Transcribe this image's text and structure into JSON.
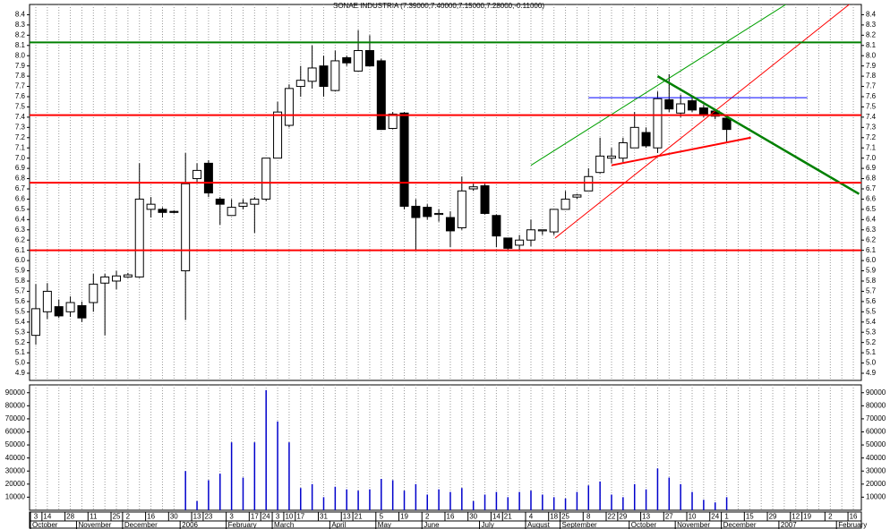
{
  "chart_data": [
    {
      "type": "candlestick",
      "title": "SONAE INDUSTRIA (7.39000,7.40000,7.15000,7.28000,-0.11000)",
      "categories": [
        "3",
        "14",
        null,
        "28",
        null,
        "11",
        null,
        "25",
        "2",
        null,
        "16",
        null,
        "30",
        null,
        "13",
        "23",
        null,
        "3",
        null,
        "17",
        "24",
        "3",
        "10",
        "17",
        null,
        "31",
        null,
        "13",
        "21",
        null,
        "5",
        null,
        "19",
        null,
        "2",
        null,
        "16",
        null,
        "30",
        null,
        "14",
        "21",
        null,
        "4",
        null,
        "18",
        "25",
        null,
        "8",
        null,
        "22",
        "29",
        null,
        "13",
        null,
        "27",
        null,
        "10",
        null,
        "24",
        "1",
        null,
        "15",
        null,
        "29",
        null,
        "12",
        "19",
        null,
        "2",
        null,
        "16"
      ],
      "months": [
        "October",
        null,
        null,
        null,
        "November",
        null,
        null,
        null,
        "December",
        null,
        null,
        null,
        null,
        "2006",
        null,
        null,
        null,
        "February",
        null,
        null,
        null,
        "March",
        null,
        null,
        null,
        null,
        "April",
        null,
        null,
        null,
        "May",
        null,
        null,
        null,
        "June",
        null,
        null,
        null,
        null,
        "July",
        null,
        null,
        null,
        "August",
        null,
        null,
        "September",
        null,
        null,
        null,
        null,
        null,
        "October",
        null,
        null,
        null,
        "November",
        null,
        null,
        null,
        "December",
        null,
        null,
        null,
        null,
        "2007",
        null,
        null,
        null,
        null,
        "February",
        null
      ],
      "open": [
        5.27,
        5.5,
        5.55,
        5.5,
        5.56,
        5.59,
        5.78,
        5.8,
        5.84,
        5.84,
        6.5,
        6.5,
        6.48,
        5.9,
        6.8,
        6.95,
        6.6,
        6.44,
        6.53,
        6.55,
        6.6,
        7.0,
        7.32,
        7.7,
        7.75,
        7.9,
        7.66,
        7.98,
        7.85,
        8.05,
        7.95,
        7.29,
        7.44,
        6.53,
        6.52,
        6.45,
        6.42,
        6.32,
        6.7,
        6.73,
        6.44,
        6.22,
        6.15,
        6.2,
        6.29,
        6.28,
        6.5,
        6.62,
        6.68,
        6.86,
        7.0,
        7.0,
        7.1,
        7.25,
        7.1,
        7.57,
        7.44,
        7.56,
        7.49,
        7.46,
        7.39,
        null,
        null,
        null,
        null,
        null,
        null,
        null,
        null,
        null,
        null,
        null
      ],
      "high": [
        5.77,
        5.78,
        5.62,
        5.65,
        5.6,
        5.87,
        5.87,
        5.9,
        5.88,
        6.95,
        6.62,
        6.52,
        6.49,
        7.05,
        6.95,
        6.98,
        6.62,
        6.6,
        6.6,
        6.62,
        7.0,
        7.55,
        7.72,
        7.9,
        8.1,
        8.0,
        8.05,
        8.0,
        8.25,
        8.2,
        7.97,
        7.45,
        7.45,
        6.6,
        6.55,
        6.5,
        6.48,
        6.82,
        6.75,
        6.75,
        6.45,
        6.22,
        6.25,
        6.4,
        6.3,
        6.5,
        6.68,
        6.65,
        6.9,
        7.2,
        7.1,
        7.2,
        7.45,
        7.3,
        7.65,
        7.82,
        7.62,
        7.6,
        7.52,
        7.48,
        7.4,
        null,
        null,
        null,
        null,
        null,
        null,
        null,
        null,
        null,
        null,
        null
      ],
      "low": [
        5.18,
        5.43,
        5.44,
        5.45,
        5.4,
        5.5,
        5.27,
        5.72,
        5.83,
        5.83,
        6.42,
        6.42,
        6.46,
        5.42,
        6.75,
        6.62,
        6.35,
        6.44,
        6.5,
        6.27,
        6.58,
        7.0,
        7.3,
        7.6,
        7.68,
        7.6,
        7.65,
        7.9,
        7.85,
        7.9,
        7.28,
        7.28,
        6.5,
        6.1,
        6.4,
        6.38,
        6.13,
        6.3,
        6.68,
        6.45,
        6.13,
        6.1,
        6.1,
        6.14,
        6.25,
        6.25,
        6.5,
        6.6,
        6.68,
        6.85,
        6.95,
        6.96,
        7.1,
        7.1,
        7.05,
        7.45,
        7.4,
        7.45,
        7.4,
        7.38,
        7.15,
        null,
        null,
        null,
        null,
        null,
        null,
        null,
        null,
        null,
        null,
        null
      ],
      "close": [
        5.53,
        5.7,
        5.46,
        5.59,
        5.44,
        5.77,
        5.84,
        5.85,
        5.86,
        6.6,
        6.55,
        6.47,
        6.47,
        6.75,
        6.88,
        6.66,
        6.55,
        6.52,
        6.56,
        6.6,
        7.0,
        7.45,
        7.68,
        7.76,
        7.88,
        7.7,
        7.95,
        7.93,
        8.05,
        7.9,
        7.28,
        7.43,
        6.53,
        6.42,
        6.43,
        6.46,
        6.29,
        6.68,
        6.72,
        6.46,
        6.24,
        6.12,
        6.2,
        6.3,
        6.3,
        6.5,
        6.6,
        6.64,
        6.82,
        7.02,
        7.02,
        7.15,
        7.3,
        7.12,
        7.58,
        7.48,
        7.53,
        7.47,
        7.43,
        7.41,
        7.28,
        null,
        null,
        null,
        null,
        null,
        null,
        null,
        null,
        null,
        null,
        null
      ],
      "up_color": "#ffffff",
      "down_color": "#000000",
      "ylim": [
        4.83,
        8.5
      ],
      "yticks": [
        4.9,
        {
          "value": 5,
          "label": "5.0"
        },
        5.1,
        5.2,
        5.3,
        5.4,
        5.5,
        5.6,
        5.7,
        5.8,
        5.9,
        {
          "value": 6,
          "label": "6.0"
        },
        6.1,
        6.2,
        6.3,
        6.4,
        6.5,
        6.6,
        6.7,
        6.8,
        6.9,
        {
          "value": 7,
          "label": "7.0"
        },
        7.1,
        7.2,
        7.3,
        7.4,
        7.5,
        7.6,
        7.7,
        7.8,
        7.9,
        {
          "value": 8,
          "label": "8.0"
        },
        8.1,
        8.2,
        8.3,
        8.4
      ],
      "hlines": [
        {
          "value": 8.13,
          "color": "#008000"
        },
        {
          "value": 7.42,
          "color": "#ff0000"
        },
        {
          "value": 6.76,
          "color": "#ff0000"
        },
        {
          "value": 6.1,
          "color": "#ff0000"
        }
      ],
      "trendlines": [
        {
          "color": "#00a000",
          "width": 1,
          "x": [
            43,
            65.7
          ],
          "y": [
            6.93,
            8.54
          ]
        },
        {
          "color": "#ff0000",
          "width": 1,
          "x": [
            45.1,
            71.2
          ],
          "y": [
            6.22,
            8.55
          ]
        },
        {
          "color": "#0000ff",
          "width": 1,
          "x": [
            48,
            67
          ],
          "y": [
            7.59,
            7.59
          ]
        },
        {
          "color": "#ff0000",
          "width": 2,
          "x": [
            50,
            62.1
          ],
          "y": [
            6.93,
            7.2
          ]
        },
        {
          "color": "#008000",
          "width": 2.5,
          "x": [
            54,
            71.5
          ],
          "y": [
            7.8,
            6.65
          ]
        }
      ]
    },
    {
      "type": "bar",
      "color": "#0000cc",
      "values": [
        0,
        0,
        0,
        0,
        0,
        0,
        0,
        0,
        0,
        0,
        0,
        0,
        0,
        30000,
        7000,
        23000,
        28000,
        52000,
        25000,
        52000,
        92000,
        68000,
        52000,
        17000,
        20000,
        10000,
        18000,
        16000,
        15000,
        16000,
        24000,
        23000,
        15000,
        20000,
        12000,
        16000,
        14000,
        17000,
        7000,
        12000,
        14000,
        10000,
        14000,
        15000,
        12000,
        10000,
        9000,
        14000,
        19000,
        22000,
        12000,
        10000,
        20000,
        16000,
        32000,
        25000,
        20000,
        14000,
        8000,
        6000,
        10000,
        null,
        null,
        null,
        null,
        null,
        null,
        null,
        null,
        null,
        null,
        null
      ],
      "ylim": [
        0,
        96000
      ],
      "yticks": [
        10000,
        20000,
        30000,
        40000,
        50000,
        60000,
        70000,
        80000,
        90000
      ]
    }
  ]
}
